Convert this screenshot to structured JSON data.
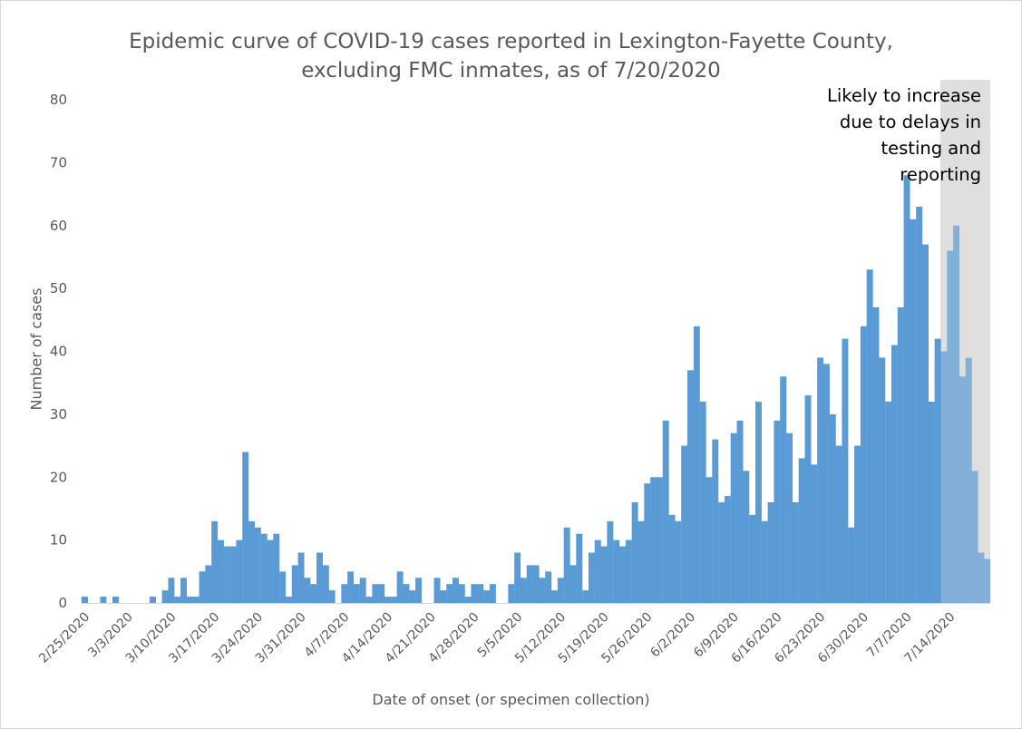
{
  "chart_data": {
    "type": "bar",
    "title_line1": "Epidemic curve of COVID-19 cases reported in Lexington-Fayette County,",
    "title_line2": "excluding FMC inmates, as of 7/20/2020",
    "xlabel": "Date of onset (or specimen collection)",
    "ylabel": "Number of cases",
    "ylim": [
      0,
      80
    ],
    "yticks": [
      0,
      10,
      20,
      30,
      40,
      50,
      60,
      70,
      80
    ],
    "grid": false,
    "start_date": "2/25/2020",
    "tick_labels": [
      "2/25/2020",
      "3/3/2020",
      "3/10/2020",
      "3/17/2020",
      "3/24/2020",
      "3/31/2020",
      "4/7/2020",
      "4/14/2020",
      "4/21/2020",
      "4/28/2020",
      "5/5/2020",
      "5/12/2020",
      "5/19/2020",
      "5/26/2020",
      "6/2/2020",
      "6/9/2020",
      "6/16/2020",
      "6/23/2020",
      "6/30/2020",
      "7/7/2020",
      "7/14/2020"
    ],
    "values": [
      1,
      0,
      0,
      1,
      0,
      1,
      0,
      0,
      0,
      0,
      0,
      1,
      0,
      2,
      4,
      1,
      4,
      1,
      1,
      5,
      6,
      13,
      10,
      9,
      9,
      10,
      24,
      13,
      12,
      11,
      10,
      11,
      5,
      1,
      6,
      8,
      4,
      3,
      8,
      6,
      2,
      0,
      3,
      5,
      3,
      4,
      1,
      3,
      3,
      1,
      1,
      5,
      3,
      2,
      4,
      0,
      0,
      4,
      2,
      3,
      4,
      3,
      1,
      3,
      3,
      2,
      3,
      0,
      0,
      3,
      8,
      4,
      6,
      6,
      4,
      5,
      2,
      4,
      12,
      6,
      11,
      2,
      8,
      10,
      9,
      13,
      10,
      9,
      10,
      16,
      13,
      19,
      20,
      20,
      29,
      14,
      13,
      25,
      37,
      44,
      32,
      20,
      26,
      16,
      17,
      27,
      29,
      21,
      14,
      32,
      13,
      16,
      29,
      36,
      27,
      16,
      23,
      33,
      22,
      39,
      38,
      30,
      25,
      42,
      12,
      25,
      44,
      53,
      47,
      39,
      32,
      41,
      47,
      68,
      61,
      63,
      57,
      32,
      42,
      40,
      56,
      60,
      36,
      39,
      21,
      8,
      7
    ],
    "bar_color": "#5b9bd5",
    "shaded_region": {
      "from_date": "7/13/2020",
      "color": "#d9d9d9",
      "annotation": [
        "Likely to increase",
        "due to delays in",
        "testing and",
        "reporting"
      ]
    }
  }
}
